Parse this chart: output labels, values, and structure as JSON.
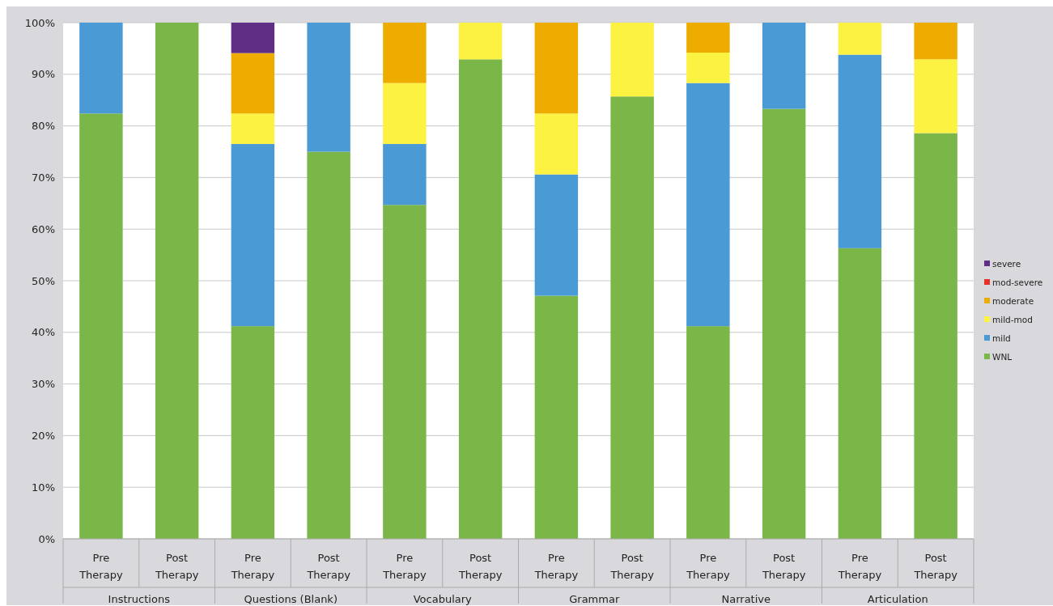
{
  "chart_data": {
    "type": "bar",
    "stacked": true,
    "categories": [
      "Pre Therapy",
      "Post Therapy",
      "Pre Therapy",
      "Post Therapy",
      "Pre Therapy",
      "Post Therapy",
      "Pre Therapy",
      "Post Therapy",
      "Pre Therapy",
      "Post Therapy",
      "Pre Therapy",
      "Post Therapy"
    ],
    "series": [
      {
        "name": "WNL",
        "color": "#7ab648",
        "values": [
          82.4,
          100,
          41.2,
          75,
          64.7,
          92.9,
          47.1,
          85.7,
          41.2,
          83.3,
          56.3,
          78.6
        ]
      },
      {
        "name": "mild",
        "color": "#4a9ad6",
        "values": [
          17.6,
          0,
          35.3,
          25,
          11.8,
          0,
          23.5,
          0,
          47.1,
          16.7,
          37.5,
          0
        ]
      },
      {
        "name": "mild-mod",
        "color": "#fbf241",
        "values": [
          0,
          0,
          5.9,
          0,
          11.8,
          7.1,
          11.8,
          14.3,
          5.9,
          0,
          6.2,
          14.3
        ]
      },
      {
        "name": "moderate",
        "color": "#eeab00",
        "values": [
          0,
          0,
          11.7,
          0,
          11.7,
          0,
          17.6,
          0,
          5.8,
          0,
          0,
          7.1
        ]
      },
      {
        "name": "mod-severe",
        "color": "#e8302a",
        "values": [
          0,
          0,
          0,
          0,
          0,
          0,
          0,
          0,
          0,
          0,
          0,
          0
        ]
      },
      {
        "name": "severe",
        "color": "#5f2f86",
        "values": [
          0,
          0,
          5.9,
          0,
          0,
          0,
          0,
          0,
          0,
          0,
          0,
          0
        ]
      }
    ],
    "ylim": [
      0,
      100
    ],
    "yticks": [
      {
        "value": 0,
        "label": "0%"
      },
      {
        "value": 10,
        "label": "10%"
      },
      {
        "value": 20,
        "label": "20%"
      },
      {
        "value": 30,
        "label": "30%"
      },
      {
        "value": 40,
        "label": "40%"
      },
      {
        "value": 50,
        "label": "50%"
      },
      {
        "value": 60,
        "label": "60%"
      },
      {
        "value": 70,
        "label": "70%"
      },
      {
        "value": 80,
        "label": "80%"
      },
      {
        "value": 90,
        "label": "90%"
      },
      {
        "value": 100,
        "label": "100%"
      }
    ],
    "grid": "y",
    "legend": "right",
    "annotations": [
      "Instructions",
      "Questions (Blank)",
      "Vocabulary",
      "Grammar",
      "Narrative",
      "Articulation"
    ]
  }
}
